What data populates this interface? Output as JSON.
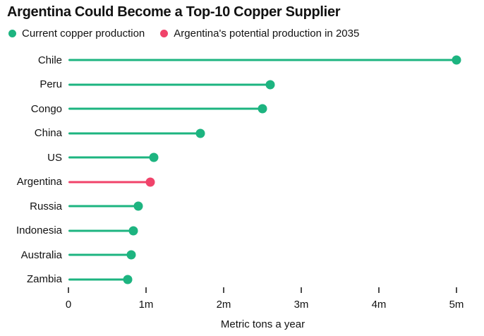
{
  "title": "Argentina Could Become a Top-10 Copper Supplier",
  "legend": [
    {
      "label": "Current copper production",
      "color_key": "green"
    },
    {
      "label": "Argentina's potential production in 2035",
      "color_key": "red"
    }
  ],
  "colors": {
    "green": "#1db480",
    "red": "#f0436a",
    "text": "#121212",
    "tick": "#4d4d4d"
  },
  "chart_data": {
    "type": "bar",
    "subtype": "horizontal-lollipop",
    "title": "Argentina Could Become a Top-10 Copper Supplier",
    "categories": [
      "Chile",
      "Peru",
      "Congo",
      "China",
      "US",
      "Argentina",
      "Russia",
      "Indonesia",
      "Australia",
      "Zambia"
    ],
    "values": [
      5.0,
      2.6,
      2.5,
      1.7,
      1.1,
      1.05,
      0.9,
      0.84,
      0.81,
      0.76
    ],
    "series_colors": [
      "green",
      "green",
      "green",
      "green",
      "green",
      "red",
      "green",
      "green",
      "green",
      "green"
    ],
    "value_unit": "million metric tons a year",
    "xlabel": "Metric tons a year",
    "ylabel": "",
    "xlim": [
      0,
      5
    ],
    "xticks": [
      0,
      1,
      2,
      3,
      4,
      5
    ],
    "xtick_labels": [
      "0",
      "1m",
      "2m",
      "3m",
      "4m",
      "5m"
    ],
    "grid": false,
    "legend_position": "top-left",
    "legend_entries": [
      "Current copper production",
      "Argentina's potential production in 2035"
    ]
  }
}
